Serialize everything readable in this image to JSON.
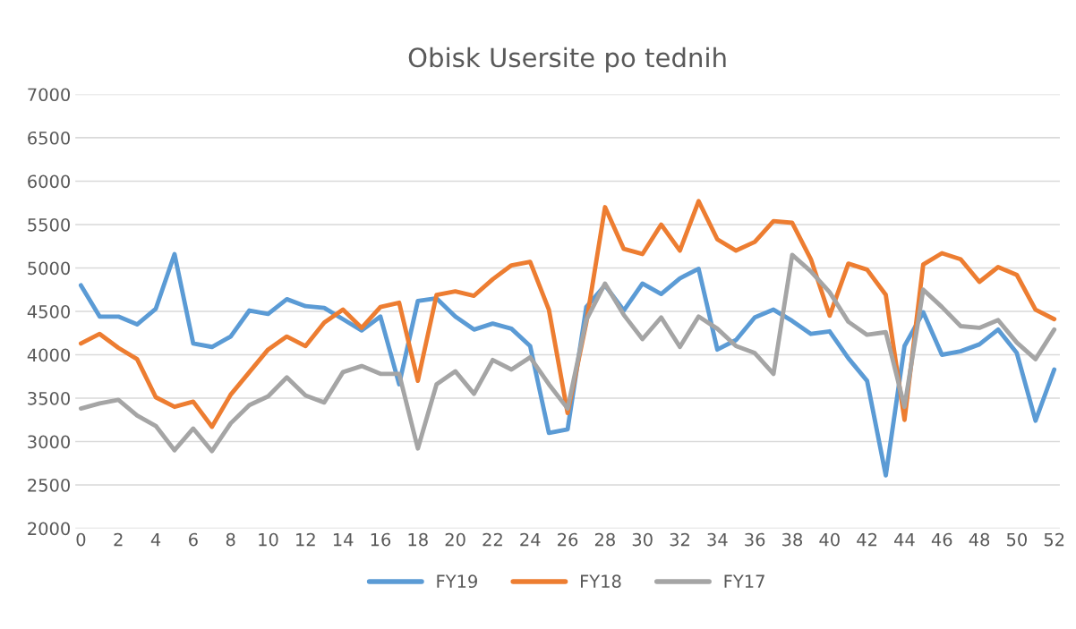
{
  "chart_data": {
    "type": "line",
    "title": "Obisk Usersite po tednih",
    "categories": [
      "0",
      null,
      "2",
      null,
      "4",
      null,
      "6",
      null,
      "8",
      null,
      "10",
      null,
      "12",
      null,
      "14",
      null,
      "16",
      null,
      "18",
      null,
      "20",
      null,
      "22",
      null,
      "24",
      null,
      "26",
      null,
      "28",
      null,
      "30",
      null,
      "32",
      null,
      "34",
      null,
      "36",
      null,
      "38",
      null,
      "40",
      null,
      "42",
      null,
      "44",
      null,
      "46",
      null,
      "48",
      null,
      "50",
      null,
      "52"
    ],
    "series": [
      {
        "name": "FY19",
        "color": "#5b9bd5",
        "values": [
          4800,
          4440,
          4440,
          4350,
          4530,
          5160,
          4130,
          4090,
          4210,
          4510,
          4470,
          4640,
          4560,
          4540,
          4410,
          4280,
          4440,
          3660,
          4620,
          4650,
          4440,
          4290,
          4360,
          4300,
          4100,
          3100,
          3140,
          4550,
          4800,
          4510,
          4820,
          4700,
          4880,
          4990,
          4060,
          4170,
          4430,
          4520,
          4390,
          4240,
          4270,
          3960,
          3700,
          2610,
          4100,
          4490,
          4000,
          4040,
          4120,
          4290,
          4020,
          3240,
          3830
        ]
      },
      {
        "name": "FY18",
        "color": "#ed7d31",
        "values": [
          4130,
          4240,
          4080,
          3950,
          3510,
          3400,
          3460,
          3170,
          3540,
          3800,
          4060,
          4210,
          4100,
          4370,
          4520,
          4310,
          4550,
          4600,
          3700,
          4690,
          4730,
          4680,
          4870,
          5030,
          5070,
          4520,
          3330,
          4370,
          5700,
          5220,
          5160,
          5500,
          5200,
          5770,
          5330,
          5200,
          5300,
          5540,
          5520,
          5100,
          4450,
          5050,
          4980,
          4690,
          3250,
          5040,
          5170,
          5100,
          4840,
          5010,
          4920,
          4520,
          4410
        ]
      },
      {
        "name": "FY17",
        "color": "#a5a5a5",
        "values": [
          3380,
          3440,
          3480,
          3300,
          3180,
          2900,
          3150,
          2890,
          3210,
          3420,
          3520,
          3740,
          3530,
          3450,
          3800,
          3870,
          3780,
          3780,
          2920,
          3660,
          3810,
          3550,
          3940,
          3830,
          3970,
          3660,
          3380,
          4400,
          4820,
          4460,
          4180,
          4430,
          4090,
          4440,
          4300,
          4100,
          4020,
          3780,
          5150,
          4960,
          4720,
          4380,
          4230,
          4260,
          3400,
          4750,
          4550,
          4330,
          4310,
          4400,
          4140,
          3950,
          4290
        ]
      }
    ],
    "ylim": [
      2000,
      7000
    ],
    "yticks": [
      2000,
      2500,
      3000,
      3500,
      4000,
      4500,
      5000,
      5500,
      6000,
      6500,
      7000
    ],
    "grid": "y",
    "legend": "bottom",
    "marker": "none",
    "line_style": "solid"
  }
}
